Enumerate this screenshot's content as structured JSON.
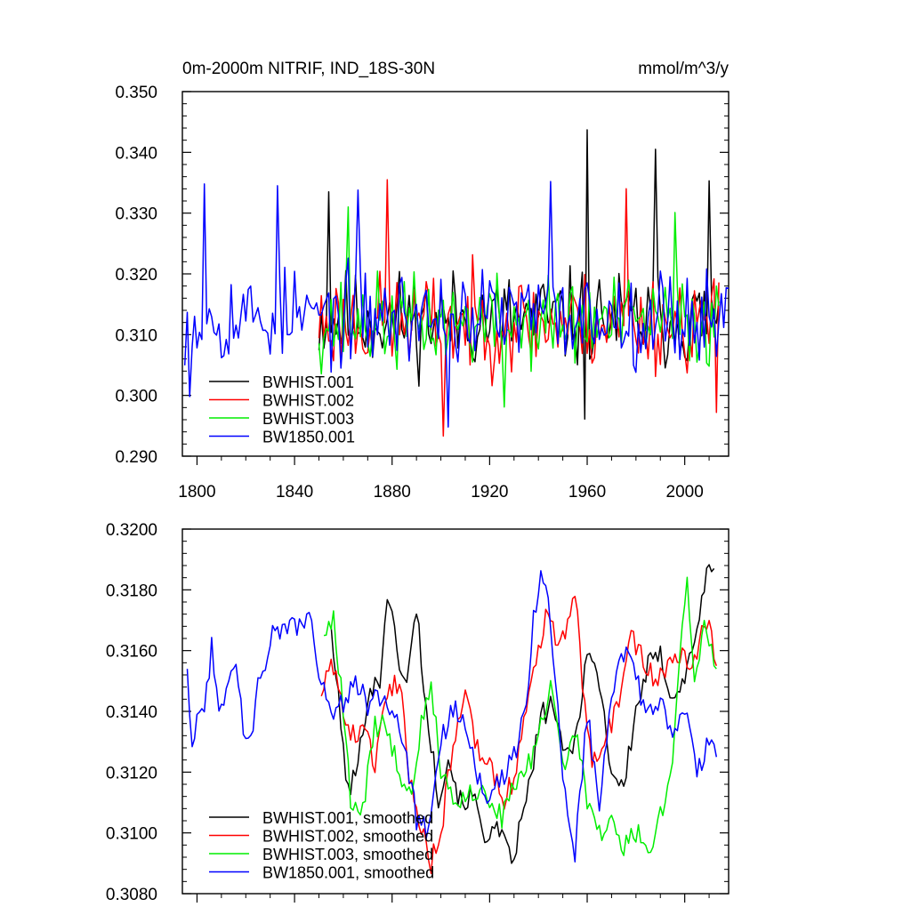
{
  "chart_data": [
    {
      "type": "line",
      "title": "0m-2000m NITRIF, IND_18S-30N",
      "units": "mmol/m^3/y",
      "xlabel": "",
      "ylabel": "",
      "xlim": [
        1794,
        2018
      ],
      "ylim": [
        0.29,
        0.35
      ],
      "xticks": [
        1800,
        1840,
        1880,
        1920,
        1960,
        2000
      ],
      "xtick_labels": [
        "1800",
        "1840",
        "1880",
        "1920",
        "1960",
        "2000"
      ],
      "yticks": [
        0.29,
        0.3,
        0.31,
        0.32,
        0.33,
        0.34,
        0.35
      ],
      "ytick_labels": [
        "0.290",
        "0.300",
        "0.310",
        "0.320",
        "0.330",
        "0.340",
        "0.350"
      ],
      "legend_position": "bottom-left",
      "series": [
        {
          "name": "BWHIST.001",
          "color": "#000000",
          "x_start": 1850,
          "x_end": 2014,
          "mean": 0.3125,
          "amp": 0.0075,
          "seed": 11,
          "peaks": [
            [
              1854,
              0.3335
            ],
            [
              1960,
              0.3437
            ],
            [
              1988,
              0.3405
            ],
            [
              2010,
              0.3353
            ],
            [
              1959,
              0.2961
            ]
          ]
        },
        {
          "name": "BWHIST.002",
          "color": "#ff0000",
          "x_start": 1850,
          "x_end": 2014,
          "mean": 0.312,
          "amp": 0.0075,
          "seed": 23,
          "peaks": [
            [
              1878,
              0.3355
            ],
            [
              1901,
              0.2933
            ],
            [
              1976,
              0.334
            ],
            [
              2013,
              0.2972
            ]
          ]
        },
        {
          "name": "BWHIST.003",
          "color": "#00ee00",
          "x_start": 1850,
          "x_end": 2014,
          "mean": 0.312,
          "amp": 0.007,
          "seed": 37,
          "peaks": [
            [
              1862,
              0.331
            ],
            [
              1926,
              0.2981
            ],
            [
              1996,
              0.3301
            ]
          ]
        },
        {
          "name": "BW1850.001",
          "color": "#0000ff",
          "x_start": 1795,
          "x_end": 2018,
          "mean": 0.313,
          "amp": 0.0072,
          "seed": 53,
          "peaks": [
            [
              1803,
              0.3348
            ],
            [
              1797,
              0.2998
            ],
            [
              1833,
              0.3345
            ],
            [
              1866,
              0.3338
            ],
            [
              1945,
              0.3352
            ],
            [
              1903,
              0.2948
            ]
          ]
        }
      ]
    },
    {
      "type": "line",
      "title": "",
      "xlabel": "",
      "ylabel": "",
      "xlim": [
        1794,
        2018
      ],
      "ylim": [
        0.308,
        0.32
      ],
      "xticks": [
        1800,
        1840,
        1880,
        1920,
        1960,
        2000
      ],
      "yticks": [
        0.308,
        0.31,
        0.312,
        0.314,
        0.316,
        0.318,
        0.32
      ],
      "ytick_labels": [
        "0.3080",
        "0.3100",
        "0.3120",
        "0.3140",
        "0.3160",
        "0.3180",
        "0.3200"
      ],
      "legend_position": "bottom-left",
      "series": [
        {
          "name": "BWHIST.001, smoothed",
          "color": "#000000",
          "seed": 101,
          "anchors": [
            [
              1855,
              0.3168
            ],
            [
              1859,
              0.3135
            ],
            [
              1862,
              0.3113
            ],
            [
              1866,
              0.3122
            ],
            [
              1870,
              0.3146
            ],
            [
              1875,
              0.315
            ],
            [
              1878,
              0.318
            ],
            [
              1882,
              0.316
            ],
            [
              1886,
              0.3148
            ],
            [
              1890,
              0.3175
            ],
            [
              1894,
              0.314
            ],
            [
              1899,
              0.3112
            ],
            [
              1903,
              0.3125
            ],
            [
              1908,
              0.311
            ],
            [
              1913,
              0.3112
            ],
            [
              1918,
              0.31
            ],
            [
              1924,
              0.31
            ],
            [
              1929,
              0.309
            ],
            [
              1935,
              0.311
            ],
            [
              1941,
              0.3138
            ],
            [
              1946,
              0.3143
            ],
            [
              1950,
              0.3125
            ],
            [
              1955,
              0.313
            ],
            [
              1960,
              0.316
            ],
            [
              1965,
              0.315
            ],
            [
              1970,
              0.312
            ],
            [
              1975,
              0.3115
            ],
            [
              1980,
              0.314
            ],
            [
              1985,
              0.3155
            ],
            [
              1990,
              0.3158
            ],
            [
              1995,
              0.3145
            ],
            [
              2000,
              0.315
            ],
            [
              2004,
              0.3165
            ],
            [
              2007,
              0.3175
            ],
            [
              2010,
              0.3188
            ],
            [
              2012,
              0.3187
            ]
          ]
        },
        {
          "name": "BWHIST.002, smoothed",
          "color": "#ff0000",
          "seed": 202,
          "anchors": [
            [
              1851,
              0.3145
            ],
            [
              1855,
              0.316
            ],
            [
              1860,
              0.314
            ],
            [
              1864,
              0.3132
            ],
            [
              1869,
              0.3135
            ],
            [
              1873,
              0.3122
            ],
            [
              1878,
              0.3148
            ],
            [
              1883,
              0.315
            ],
            [
              1887,
              0.312
            ],
            [
              1891,
              0.3105
            ],
            [
              1896,
              0.309
            ],
            [
              1900,
              0.31
            ],
            [
              1905,
              0.313
            ],
            [
              1910,
              0.3145
            ],
            [
              1915,
              0.3128
            ],
            [
              1920,
              0.3125
            ],
            [
              1925,
              0.311
            ],
            [
              1930,
              0.3118
            ],
            [
              1935,
              0.314
            ],
            [
              1940,
              0.316
            ],
            [
              1944,
              0.3175
            ],
            [
              1948,
              0.316
            ],
            [
              1952,
              0.317
            ],
            [
              1955,
              0.318
            ],
            [
              1958,
              0.315
            ],
            [
              1962,
              0.3125
            ],
            [
              1967,
              0.313
            ],
            [
              1972,
              0.314
            ],
            [
              1977,
              0.3165
            ],
            [
              1982,
              0.316
            ],
            [
              1987,
              0.315
            ],
            [
              1992,
              0.3155
            ],
            [
              1997,
              0.316
            ],
            [
              2002,
              0.3155
            ],
            [
              2007,
              0.3165
            ],
            [
              2010,
              0.3172
            ],
            [
              2013,
              0.3155
            ]
          ]
        },
        {
          "name": "BWHIST.003, smoothed",
          "color": "#00ee00",
          "seed": 303,
          "anchors": [
            [
              1852,
              0.3165
            ],
            [
              1856,
              0.317
            ],
            [
              1860,
              0.314
            ],
            [
              1863,
              0.311
            ],
            [
              1868,
              0.3108
            ],
            [
              1873,
              0.3135
            ],
            [
              1878,
              0.3135
            ],
            [
              1883,
              0.312
            ],
            [
              1888,
              0.3115
            ],
            [
              1893,
              0.314
            ],
            [
              1896,
              0.315
            ],
            [
              1900,
              0.312
            ],
            [
              1905,
              0.3112
            ],
            [
              1910,
              0.311
            ],
            [
              1915,
              0.3115
            ],
            [
              1920,
              0.311
            ],
            [
              1925,
              0.3105
            ],
            [
              1930,
              0.3115
            ],
            [
              1935,
              0.312
            ],
            [
              1940,
              0.313
            ],
            [
              1945,
              0.315
            ],
            [
              1950,
              0.312
            ],
            [
              1955,
              0.3135
            ],
            [
              1960,
              0.311
            ],
            [
              1965,
              0.31
            ],
            [
              1970,
              0.3105
            ],
            [
              1975,
              0.3095
            ],
            [
              1980,
              0.31
            ],
            [
              1985,
              0.3095
            ],
            [
              1990,
              0.3105
            ],
            [
              1995,
              0.312
            ],
            [
              1998,
              0.316
            ],
            [
              2001,
              0.3184
            ],
            [
              2004,
              0.315
            ],
            [
              2008,
              0.317
            ],
            [
              2013,
              0.3154
            ]
          ]
        },
        {
          "name": "BW1850.001, smoothed",
          "color": "#0000ff",
          "seed": 404,
          "anchors": [
            [
              1796,
              0.3154
            ],
            [
              1798,
              0.3125
            ],
            [
              1800,
              0.3138
            ],
            [
              1803,
              0.314
            ],
            [
              1806,
              0.3162
            ],
            [
              1809,
              0.3142
            ],
            [
              1812,
              0.3145
            ],
            [
              1815,
              0.3158
            ],
            [
              1819,
              0.3135
            ],
            [
              1822,
              0.313
            ],
            [
              1825,
              0.315
            ],
            [
              1828,
              0.3152
            ],
            [
              1831,
              0.3168
            ],
            [
              1835,
              0.3165
            ],
            [
              1838,
              0.317
            ],
            [
              1842,
              0.3168
            ],
            [
              1846,
              0.3172
            ],
            [
              1850,
              0.3153
            ],
            [
              1855,
              0.314
            ],
            [
              1860,
              0.3142
            ],
            [
              1865,
              0.315
            ],
            [
              1870,
              0.3142
            ],
            [
              1875,
              0.3145
            ],
            [
              1880,
              0.314
            ],
            [
              1885,
              0.313
            ],
            [
              1890,
              0.3105
            ],
            [
              1895,
              0.31
            ],
            [
              1900,
              0.313
            ],
            [
              1905,
              0.314
            ],
            [
              1910,
              0.3138
            ],
            [
              1915,
              0.312
            ],
            [
              1920,
              0.311
            ],
            [
              1925,
              0.3118
            ],
            [
              1930,
              0.3125
            ],
            [
              1935,
              0.314
            ],
            [
              1938,
              0.317
            ],
            [
              1941,
              0.3185
            ],
            [
              1945,
              0.317
            ],
            [
              1950,
              0.312
            ],
            [
              1955,
              0.3093
            ],
            [
              1960,
              0.314
            ],
            [
              1965,
              0.311
            ],
            [
              1970,
              0.3148
            ],
            [
              1975,
              0.316
            ],
            [
              1980,
              0.315
            ],
            [
              1985,
              0.314
            ],
            [
              1990,
              0.3145
            ],
            [
              1995,
              0.313
            ],
            [
              2000,
              0.314
            ],
            [
              2005,
              0.312
            ],
            [
              2010,
              0.313
            ],
            [
              2013,
              0.3125
            ]
          ]
        }
      ]
    }
  ]
}
